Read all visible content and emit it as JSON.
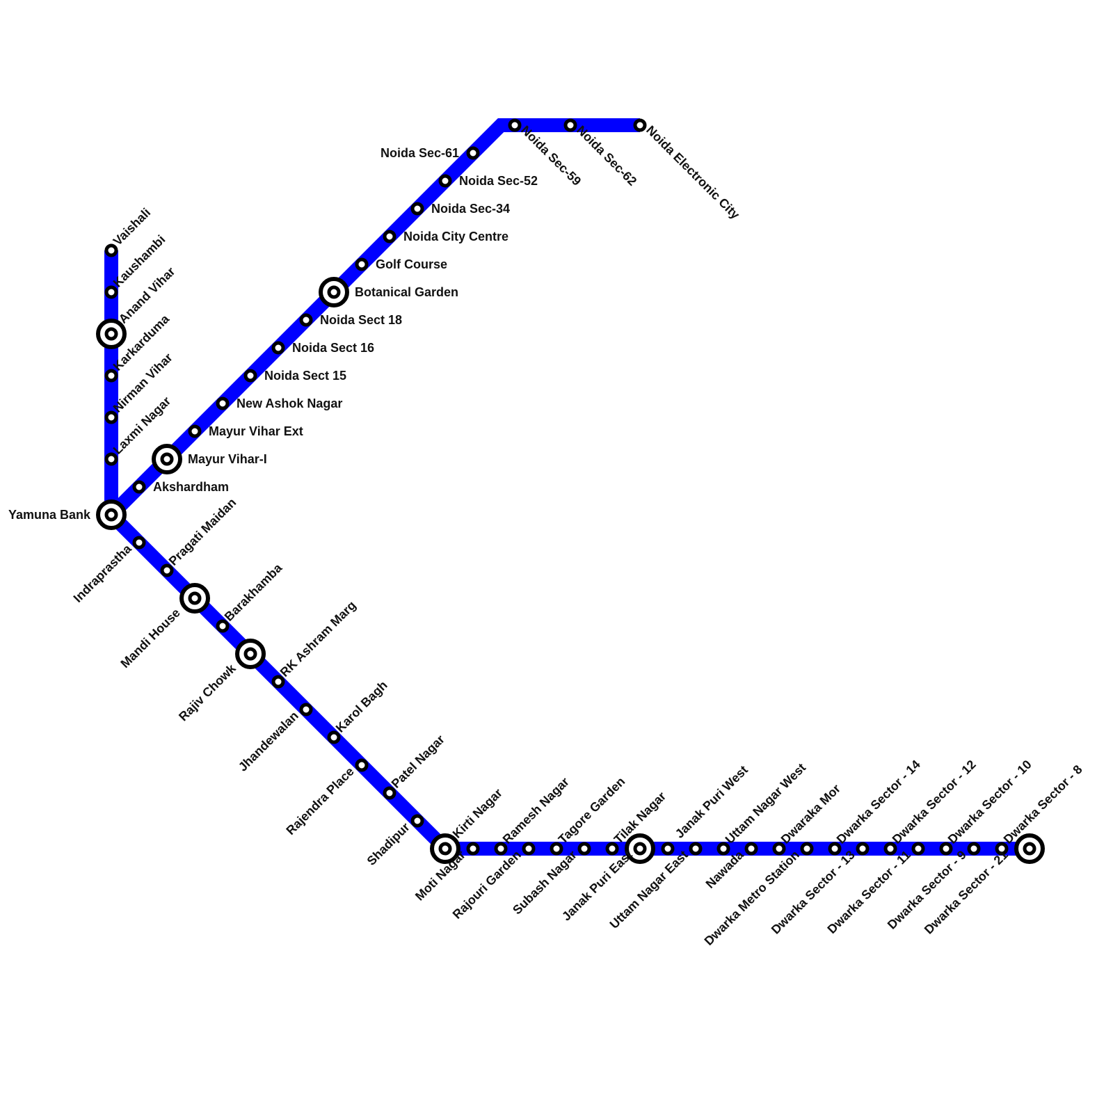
{
  "line": {
    "color": "#0000ff"
  },
  "stations": [
    {
      "name": "Vaishali",
      "interchange": false
    },
    {
      "name": "Kaushambi",
      "interchange": false
    },
    {
      "name": "Anand Vihar",
      "interchange": true
    },
    {
      "name": "Karkarduma",
      "interchange": false
    },
    {
      "name": "Nirman Vihar",
      "interchange": false
    },
    {
      "name": "Laxmi Nagar",
      "interchange": false
    },
    {
      "name": "Yamuna Bank",
      "interchange": true
    },
    {
      "name": "Akshardham",
      "interchange": false
    },
    {
      "name": "Mayur Vihar-I",
      "interchange": true
    },
    {
      "name": "Mayur Vihar Ext",
      "interchange": false
    },
    {
      "name": "New Ashok Nagar",
      "interchange": false
    },
    {
      "name": "Noida Sect 15",
      "interchange": false
    },
    {
      "name": "Noida Sect 16",
      "interchange": false
    },
    {
      "name": "Noida Sect 18",
      "interchange": false
    },
    {
      "name": "Botanical Garden",
      "interchange": true
    },
    {
      "name": "Golf Course",
      "interchange": false
    },
    {
      "name": "Noida City Centre",
      "interchange": false
    },
    {
      "name": "Noida Sec-34",
      "interchange": false
    },
    {
      "name": "Noida Sec-52",
      "interchange": false
    },
    {
      "name": "Noida Sec-61",
      "interchange": false
    },
    {
      "name": "Noida Sec-59",
      "interchange": false
    },
    {
      "name": "Noida Sec-62",
      "interchange": false
    },
    {
      "name": "Noida Electronic City",
      "interchange": false
    },
    {
      "name": "Indraprastha",
      "interchange": false
    },
    {
      "name": "Pragati Maidan",
      "interchange": false
    },
    {
      "name": "Mandi House",
      "interchange": true
    },
    {
      "name": "Barakhamba",
      "interchange": false
    },
    {
      "name": "Rajiv Chowk",
      "interchange": true
    },
    {
      "name": "RK Ashram Marg",
      "interchange": false
    },
    {
      "name": "Jhandewalan",
      "interchange": false
    },
    {
      "name": "Karol Bagh",
      "interchange": false
    },
    {
      "name": "Rajendra Place",
      "interchange": false
    },
    {
      "name": "Patel Nagar",
      "interchange": false
    },
    {
      "name": "Shadipur",
      "interchange": false
    },
    {
      "name": "Kirti Nagar",
      "interchange": true
    },
    {
      "name": "Moti Nagar",
      "interchange": false
    },
    {
      "name": "Ramesh Nagar",
      "interchange": false
    },
    {
      "name": "Rajouri Garden",
      "interchange": false
    },
    {
      "name": "Tagore Garden",
      "interchange": false
    },
    {
      "name": "Subash Nagar",
      "interchange": false
    },
    {
      "name": "Tilak Nagar",
      "interchange": false
    },
    {
      "name": "Janak Puri East",
      "interchange": true
    },
    {
      "name": "Janak Puri West",
      "interchange": false
    },
    {
      "name": "Uttam Nagar East",
      "interchange": false
    },
    {
      "name": "Uttam Nagar West",
      "interchange": false
    },
    {
      "name": "Nawada",
      "interchange": false
    },
    {
      "name": "Dwaraka Mor",
      "interchange": false
    },
    {
      "name": "Dwarka Metro Station",
      "interchange": false
    },
    {
      "name": "Dwarka Sector - 14",
      "interchange": false
    },
    {
      "name": "Dwarka Sector - 13",
      "interchange": false
    },
    {
      "name": "Dwarka Sector - 12",
      "interchange": false
    },
    {
      "name": "Dwarka Sector - 11",
      "interchange": false
    },
    {
      "name": "Dwarka Sector - 10",
      "interchange": false
    },
    {
      "name": "Dwarka Sector - 9",
      "interchange": false
    },
    {
      "name": "Dwarka Sector - 8",
      "interchange": false
    },
    {
      "name": "Dwarka Sector - 21",
      "interchange": true
    }
  ]
}
